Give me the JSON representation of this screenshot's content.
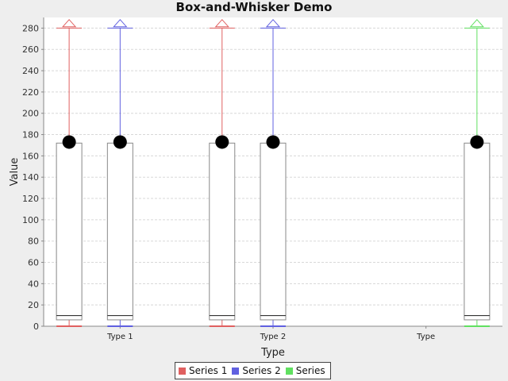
{
  "chart_data": {
    "type": "box",
    "title": "Box-and-Whisker Demo",
    "xlabel": "Type",
    "ylabel": "Value",
    "ylim": [
      0,
      290
    ],
    "yticks": [
      0,
      20,
      40,
      60,
      80,
      100,
      120,
      140,
      160,
      180,
      200,
      220,
      240,
      260,
      280
    ],
    "categories": [
      "Type 1",
      "Type 2",
      "Type"
    ],
    "grid": true,
    "legend_position": "bottom",
    "series": [
      {
        "name": "Series 1",
        "color": "#e06060",
        "boxes": [
          {
            "category": "Type 1",
            "whisker_low": 0,
            "q1": 6,
            "median": 10,
            "q3": 172,
            "whisker_high": 280,
            "mean": 173,
            "outlier": 285
          },
          {
            "category": "Type 2",
            "whisker_low": 0,
            "q1": 6,
            "median": 10,
            "q3": 172,
            "whisker_high": 280,
            "mean": 173,
            "outlier": 285
          }
        ]
      },
      {
        "name": "Series 2",
        "color": "#6060e0",
        "boxes": [
          {
            "category": "Type 1",
            "whisker_low": 0,
            "q1": 6,
            "median": 10,
            "q3": 172,
            "whisker_high": 280,
            "mean": 173,
            "outlier": 285
          },
          {
            "category": "Type 2",
            "whisker_low": 0,
            "q1": 6,
            "median": 10,
            "q3": 172,
            "whisker_high": 280,
            "mean": 173,
            "outlier": 285
          }
        ]
      },
      {
        "name": "Series",
        "color": "#60e060",
        "boxes": [
          {
            "category": "Type",
            "whisker_low": 0,
            "q1": 6,
            "median": 10,
            "q3": 172,
            "whisker_high": 280,
            "mean": 173,
            "outlier": 285
          }
        ]
      }
    ]
  }
}
